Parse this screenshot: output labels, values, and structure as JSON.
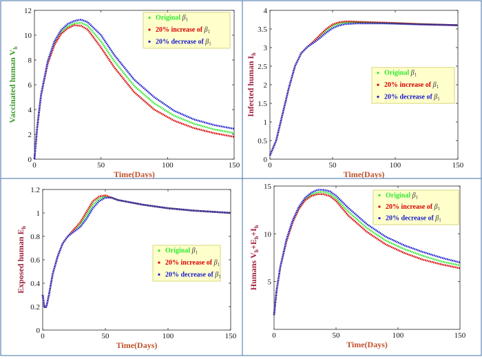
{
  "colors": {
    "border": "#3f6fa6",
    "original": "#2ee82e",
    "increase": "#d60000",
    "decrease": "#1a1acc",
    "ylabel_green": "#3c9a2a",
    "ylabel_red": "#9e1f3a",
    "xlabel": "#c0502a",
    "legend_bg": "#ffffcc",
    "legend_border": "#d6d67a"
  },
  "chart_data": [
    {
      "type": "line",
      "title": "",
      "xlabel": "Time(Days)",
      "ylabel_main": "Vaccinated human  V",
      "ylabel_sub": "h",
      "ylabel_color": "green",
      "xlim": [
        0,
        150
      ],
      "ylim": [
        0,
        12
      ],
      "xticks": [
        0,
        50,
        100,
        150
      ],
      "yticks": [
        0,
        2,
        4,
        6,
        8,
        10,
        12
      ],
      "x": [
        0,
        2,
        5,
        10,
        15,
        20,
        25,
        30,
        35,
        40,
        50,
        60,
        75,
        90,
        105,
        120,
        135,
        150
      ],
      "series": [
        {
          "name": "Original",
          "key": "original",
          "values": [
            0,
            2.5,
            5.2,
            7.8,
            9.3,
            10.2,
            10.7,
            10.95,
            11.0,
            10.75,
            9.5,
            7.9,
            5.9,
            4.5,
            3.5,
            2.85,
            2.4,
            2.1
          ]
        },
        {
          "name": "20% increase",
          "key": "increase",
          "values": [
            0,
            2.5,
            5.2,
            7.7,
            9.2,
            10.1,
            10.55,
            10.8,
            10.75,
            10.45,
            9.0,
            7.4,
            5.4,
            4.0,
            3.1,
            2.5,
            2.1,
            1.8
          ]
        },
        {
          "name": "20% decrease",
          "key": "decrease",
          "values": [
            0,
            2.5,
            5.2,
            7.9,
            9.5,
            10.4,
            10.9,
            11.15,
            11.25,
            11.05,
            10.0,
            8.4,
            6.4,
            5.0,
            3.9,
            3.2,
            2.75,
            2.45
          ]
        }
      ],
      "legend": {
        "placement": "top-right",
        "entries": [
          {
            "label": "Original",
            "sym": "β",
            "sub": "1",
            "key": "original"
          },
          {
            "label": "20% increase of",
            "sym": "β",
            "sub": "1",
            "key": "increase"
          },
          {
            "label": "20% decrease of",
            "sym": "β",
            "sub": "1",
            "key": "decrease"
          }
        ]
      }
    },
    {
      "type": "line",
      "title": "",
      "xlabel": "Time(Days)",
      "ylabel_main": "Infected human  I",
      "ylabel_sub": "h",
      "ylabel_color": "red",
      "xlim": [
        0,
        150
      ],
      "ylim": [
        0,
        4
      ],
      "xticks": [
        0,
        50,
        100,
        150
      ],
      "yticks": [
        0,
        0.5,
        1,
        1.5,
        2,
        2.5,
        3,
        3.5,
        4
      ],
      "x": [
        0,
        5,
        10,
        15,
        20,
        25,
        30,
        35,
        40,
        45,
        50,
        55,
        60,
        65,
        70,
        80,
        90,
        100,
        120,
        150
      ],
      "series": [
        {
          "name": "Original",
          "key": "original",
          "values": [
            0.1,
            0.5,
            1.2,
            1.9,
            2.5,
            2.85,
            3.02,
            3.15,
            3.3,
            3.45,
            3.58,
            3.64,
            3.67,
            3.68,
            3.68,
            3.67,
            3.66,
            3.65,
            3.63,
            3.6
          ]
        },
        {
          "name": "20% increase",
          "key": "increase",
          "values": [
            0.1,
            0.5,
            1.2,
            1.9,
            2.5,
            2.85,
            3.02,
            3.17,
            3.34,
            3.5,
            3.62,
            3.68,
            3.7,
            3.7,
            3.69,
            3.68,
            3.67,
            3.66,
            3.63,
            3.6
          ]
        },
        {
          "name": "20% decrease",
          "key": "decrease",
          "values": [
            0.1,
            0.5,
            1.2,
            1.9,
            2.5,
            2.85,
            3.02,
            3.13,
            3.26,
            3.4,
            3.52,
            3.59,
            3.63,
            3.64,
            3.65,
            3.65,
            3.65,
            3.64,
            3.62,
            3.6
          ]
        }
      ],
      "legend": {
        "placement": "center-right",
        "entries": [
          {
            "label": "Original",
            "sym": "β",
            "sub": "1",
            "key": "original"
          },
          {
            "label": "20% increase of",
            "sym": "β",
            "sub": "1",
            "key": "increase"
          },
          {
            "label": "20% decrease of",
            "sym": "β",
            "sub": "1",
            "key": "decrease"
          }
        ]
      }
    },
    {
      "type": "line",
      "title": "",
      "xlabel": "Time(Days)",
      "ylabel_main": "Exposed human  E",
      "ylabel_sub": "h",
      "ylabel_color": "red",
      "xlim": [
        0,
        150
      ],
      "ylim": [
        0,
        1.2
      ],
      "xticks": [
        0,
        50,
        100,
        150
      ],
      "yticks": [
        0,
        0.2,
        0.4,
        0.6,
        0.8,
        1,
        1.2
      ],
      "x": [
        0,
        1,
        2,
        3,
        5,
        8,
        12,
        16,
        20,
        25,
        30,
        35,
        40,
        45,
        50,
        55,
        60,
        70,
        80,
        100,
        120,
        150
      ],
      "series": [
        {
          "name": "Original",
          "key": "original",
          "values": [
            0.3,
            0.22,
            0.19,
            0.2,
            0.3,
            0.48,
            0.63,
            0.74,
            0.8,
            0.85,
            0.9,
            0.98,
            1.07,
            1.12,
            1.14,
            1.13,
            1.11,
            1.09,
            1.07,
            1.04,
            1.02,
            1.0
          ]
        },
        {
          "name": "20% increase",
          "key": "increase",
          "values": [
            0.3,
            0.22,
            0.19,
            0.2,
            0.3,
            0.48,
            0.63,
            0.74,
            0.8,
            0.86,
            0.92,
            1.01,
            1.1,
            1.14,
            1.15,
            1.13,
            1.11,
            1.09,
            1.07,
            1.04,
            1.02,
            1.0
          ]
        },
        {
          "name": "20% decrease",
          "key": "decrease",
          "values": [
            0.3,
            0.22,
            0.19,
            0.2,
            0.3,
            0.48,
            0.63,
            0.74,
            0.8,
            0.84,
            0.88,
            0.95,
            1.04,
            1.1,
            1.13,
            1.13,
            1.11,
            1.09,
            1.07,
            1.04,
            1.02,
            1.0
          ]
        }
      ],
      "legend": {
        "placement": "center-right",
        "entries": [
          {
            "label": "Original",
            "sym": "β",
            "sub": "1",
            "key": "original"
          },
          {
            "label": "20% increase of",
            "sym": "β",
            "sub": "1",
            "key": "increase"
          },
          {
            "label": "20% decrease of",
            "sym": "β",
            "sub": "1",
            "key": "decrease"
          }
        ]
      }
    },
    {
      "type": "line",
      "title": "",
      "xlabel": "Time(Days)",
      "ylabel_main": "Humans V",
      "ylabel_sub": "h",
      "ylabel_rest": [
        {
          "t": "+E",
          "s": "h"
        },
        {
          "t": "+I",
          "s": "h"
        }
      ],
      "ylabel_color": "red",
      "xlim": [
        0,
        150
      ],
      "ylim": [
        0,
        15
      ],
      "xticks": [
        0,
        50,
        100,
        150
      ],
      "yticks": [
        5,
        10,
        15
      ],
      "x": [
        0,
        2,
        5,
        10,
        15,
        20,
        25,
        30,
        35,
        40,
        45,
        50,
        60,
        75,
        90,
        105,
        120,
        135,
        150
      ],
      "series": [
        {
          "name": "Original",
          "key": "original",
          "values": [
            1.5,
            4.0,
            6.5,
            9.3,
            11.3,
            12.7,
            13.6,
            14.1,
            14.35,
            14.4,
            14.2,
            13.7,
            12.3,
            10.6,
            9.3,
            8.4,
            7.7,
            7.1,
            6.7
          ]
        },
        {
          "name": "20% increase",
          "key": "increase",
          "values": [
            1.5,
            4.0,
            6.5,
            9.2,
            11.2,
            12.6,
            13.5,
            13.95,
            14.15,
            14.15,
            13.95,
            13.45,
            11.9,
            10.2,
            8.9,
            8.0,
            7.3,
            6.8,
            6.4
          ]
        },
        {
          "name": "20% decrease",
          "key": "decrease",
          "values": [
            1.5,
            4.0,
            6.5,
            9.4,
            11.4,
            12.8,
            13.75,
            14.3,
            14.6,
            14.6,
            14.45,
            14.0,
            12.7,
            11.0,
            9.7,
            8.8,
            8.1,
            7.5,
            7.0
          ]
        }
      ],
      "legend": {
        "placement": "top-right",
        "entries": [
          {
            "label": "Original",
            "sym": "β",
            "sub": "1",
            "key": "original"
          },
          {
            "label": "20% increase of",
            "sym": "β",
            "sub": "1",
            "key": "increase"
          },
          {
            "label": "20% decrease of",
            "sym": "β",
            "sub": "1",
            "key": "decrease"
          }
        ]
      }
    }
  ]
}
